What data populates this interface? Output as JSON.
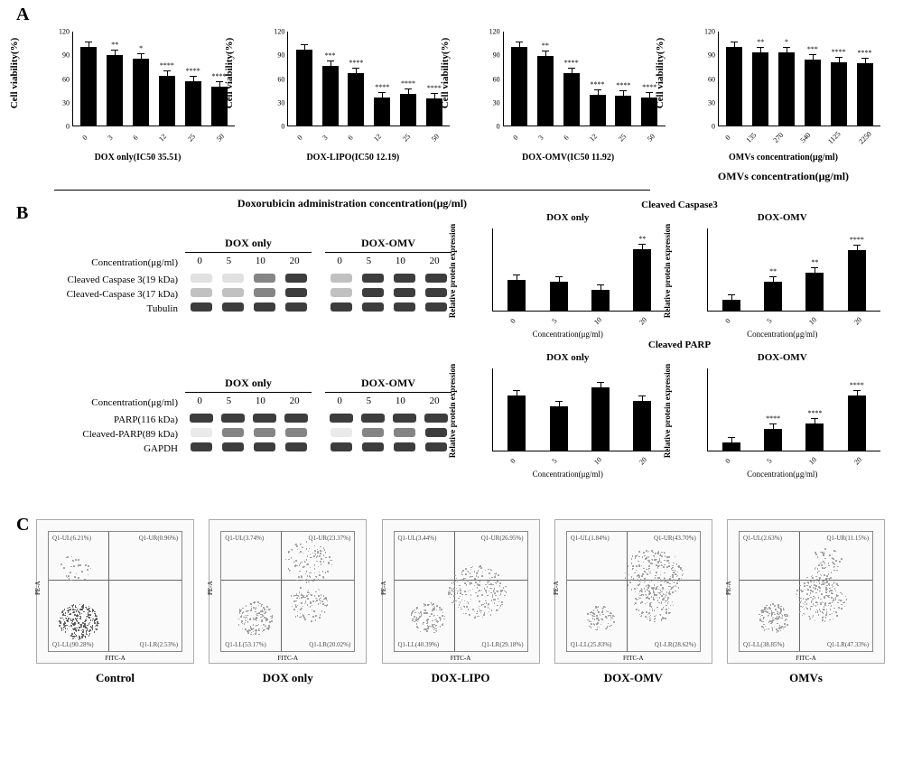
{
  "labels": {
    "A": "A",
    "B": "B",
    "C": "C",
    "cell_viability": "Cell viability(%)",
    "dox_conc_label": "Doxorubicin administration concentration(μg/ml)",
    "omv_conc_label": "OMVs concentration(μg/ml)",
    "conc_simple": "Concentration(μg/ml)",
    "rel_prot": "Relative protein expression"
  },
  "panelA": {
    "ymax": 120,
    "yticks": [
      0,
      30,
      60,
      90,
      120
    ],
    "charts": [
      {
        "title": "DOX only(IC50 35.51)",
        "categories": [
          "0",
          "3",
          "6",
          "12",
          "25",
          "50"
        ],
        "values": [
          100,
          90,
          85,
          64,
          56,
          50
        ],
        "sig": [
          "",
          "**",
          "*",
          "****",
          "****",
          "****"
        ]
      },
      {
        "title": "DOX-LIPO(IC50 12.19)",
        "categories": [
          "0",
          "3",
          "6",
          "12",
          "25",
          "50"
        ],
        "values": [
          97,
          76,
          67,
          36,
          40,
          35
        ],
        "sig": [
          "",
          "***",
          "****",
          "****",
          "****",
          "****"
        ]
      },
      {
        "title": "DOX-OMV(IC50 11.92)",
        "categories": [
          "0",
          "3",
          "6",
          "12",
          "25",
          "50"
        ],
        "values": [
          100,
          89,
          67,
          39,
          38,
          36
        ],
        "sig": [
          "",
          "**",
          "****",
          "****",
          "****",
          "****"
        ]
      },
      {
        "title": "",
        "categories": [
          "0",
          "135",
          "270",
          "540",
          "1125",
          "2250"
        ],
        "values": [
          100,
          93,
          93,
          84,
          81,
          80
        ],
        "sig": [
          "",
          "**",
          "*",
          "***",
          "****",
          "****"
        ],
        "xaxis": "OMVs concentration(μg/ml)"
      }
    ]
  },
  "panelB": {
    "blots": [
      {
        "headers": [
          "DOX only",
          "DOX-OMV"
        ],
        "conc_label": "Concentration(μg/ml)",
        "concs": [
          "0",
          "5",
          "10",
          "20"
        ],
        "rows": [
          {
            "label": "Cleaved Caspase 3(19 kDa)"
          },
          {
            "label": "Cleaved-Caspase 3(17 kDa)"
          },
          {
            "label": "Tubulin"
          }
        ],
        "quant_super": "Cleaved Caspase3",
        "quants": [
          {
            "title": "DOX only",
            "ymax": 40,
            "cats": [
              "0",
              "5",
              "10",
              "20"
            ],
            "values": [
              15,
              14,
              10,
              30
            ],
            "sig": [
              "",
              "",
              "",
              "**"
            ]
          },
          {
            "title": "DOX-OMV",
            "ymax": 150,
            "cats": [
              "0",
              "5",
              "10",
              "20"
            ],
            "values": [
              20,
              52,
              70,
              110
            ],
            "sig": [
              "",
              "**",
              "**",
              "****"
            ]
          }
        ]
      },
      {
        "headers": [
          "DOX only",
          "DOX-OMV"
        ],
        "conc_label": "Concentration(μg/ml)",
        "concs": [
          "0",
          "5",
          "10",
          "20"
        ],
        "rows": [
          {
            "label": "PARP(116 kDa)"
          },
          {
            "label": "Cleaved-PARP(89 kDa)"
          },
          {
            "label": "GAPDH"
          }
        ],
        "quant_super": "Cleaved PARP",
        "quants": [
          {
            "title": "DOX only",
            "ymax": 30,
            "cats": [
              "0",
              "5",
              "10",
              "20"
            ],
            "values": [
              20,
              16,
              23,
              18
            ],
            "sig": [
              "",
              "",
              "",
              ""
            ]
          },
          {
            "title": "DOX-OMV",
            "ymax": 150,
            "cats": [
              "0",
              "5",
              "10",
              "20"
            ],
            "values": [
              15,
              40,
              50,
              100
            ],
            "sig": [
              "",
              "****",
              "****",
              "****"
            ]
          }
        ]
      }
    ]
  },
  "panelC": {
    "plots": [
      {
        "label": "Control",
        "quads": {
          "ul": "Q1-UL(6.21%)",
          "ur": "Q1-UR(0.96%)",
          "ll": "Q1-LL(90.28%)",
          "lr": "Q1-LR(2.53%)"
        },
        "pattern": "control"
      },
      {
        "label": "DOX only",
        "quads": {
          "ul": "Q1-UL(3.74%)",
          "ur": "Q1-UR(23.37%)",
          "ll": "Q1-LL(53.17%)",
          "lr": "Q1-LR(20.02%)"
        },
        "pattern": "dox"
      },
      {
        "label": "DOX-LIPO",
        "quads": {
          "ul": "Q1-UL(3.44%)",
          "ur": "Q1-UR(26.95%)",
          "ll": "Q1-LL(40.39%)",
          "lr": "Q1-LR(29.18%)"
        },
        "pattern": "lipo"
      },
      {
        "label": "DOX-OMV",
        "quads": {
          "ul": "Q1-UL(1.84%)",
          "ur": "Q1-UR(43.70%)",
          "ll": "Q1-LL(25.83%)",
          "lr": "Q1-LR(28.62%)"
        },
        "pattern": "omv"
      },
      {
        "label": "OMVs",
        "quads": {
          "ul": "Q1-UL(2.63%)",
          "ur": "Q1-UR(11.15%)",
          "ll": "Q1-LL(38.85%)",
          "lr": "Q1-LR(47.33%)"
        },
        "pattern": "omvs"
      }
    ],
    "ylab": "PE-A",
    "xlab": "FITC-A"
  },
  "colors": {
    "bar": "#000000",
    "band": "#2a2a2a",
    "dots_dark": "#555555",
    "dots_light": "#999999"
  }
}
